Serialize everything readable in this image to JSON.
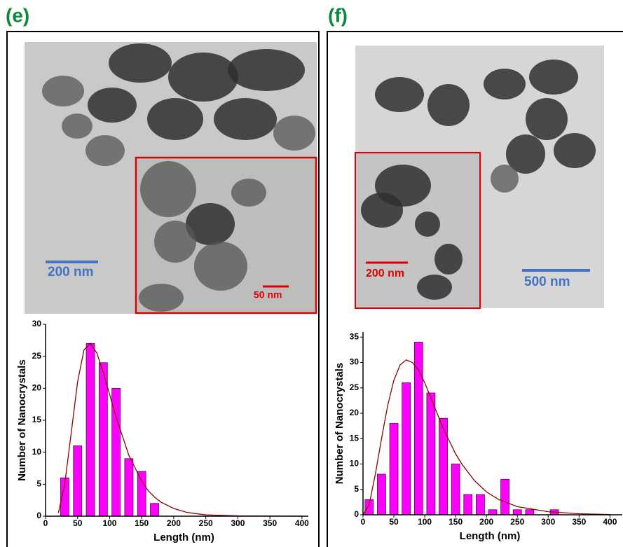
{
  "figure": {
    "panels": [
      {
        "label": "(e)",
        "scale_bar": "200 nm",
        "inset_scale_bar": "50 nm"
      },
      {
        "label": "(f)",
        "inset_scale_bar": "200 nm",
        "scale_bar": "500 nm"
      }
    ]
  },
  "chart_data": [
    {
      "type": "bar",
      "x_label": "Length (nm)",
      "y_label": "Number of Nanocrystals",
      "x": [
        30,
        50,
        70,
        90,
        110,
        130,
        150,
        170
      ],
      "values": [
        6,
        11,
        27,
        24,
        20,
        9,
        7,
        2
      ],
      "color": "#ff00ff",
      "fit": {
        "color": "#8b0000",
        "x": [
          20,
          30,
          40,
          50,
          60,
          70,
          80,
          90,
          100,
          110,
          120,
          130,
          140,
          150,
          160,
          170,
          180,
          200,
          220,
          250,
          300,
          400
        ],
        "y": [
          0.5,
          5,
          13,
          21,
          26,
          27,
          25.5,
          22.5,
          19,
          15.5,
          12.5,
          9.5,
          7.5,
          5.5,
          4,
          3,
          2.2,
          1.2,
          0.6,
          0.2,
          0.05,
          0
        ]
      },
      "xlim": [
        0,
        410
      ],
      "ylim": [
        0,
        30
      ],
      "xticks": [
        0,
        50,
        100,
        150,
        200,
        250,
        300,
        350,
        400
      ],
      "yticks": [
        0,
        5,
        10,
        15,
        20,
        25,
        30
      ]
    },
    {
      "type": "bar",
      "x_label": "Length (nm)",
      "y_label": "Number of Nanocrystals",
      "x": [
        10,
        30,
        50,
        70,
        90,
        110,
        130,
        150,
        170,
        190,
        210,
        230,
        250,
        270,
        310
      ],
      "values": [
        3,
        8,
        18,
        26,
        34,
        24,
        19,
        10,
        4,
        4,
        1,
        7,
        1,
        1,
        1
      ],
      "color": "#ff00ff",
      "fit": {
        "color": "#8b0000",
        "x": [
          0,
          10,
          20,
          30,
          40,
          50,
          60,
          70,
          80,
          90,
          100,
          110,
          120,
          130,
          140,
          150,
          160,
          180,
          200,
          220,
          250,
          300,
          350,
          400
        ],
        "y": [
          0,
          2,
          8,
          15,
          21.5,
          26.5,
          29.5,
          30.5,
          30,
          28.5,
          26,
          23,
          20,
          17,
          14.5,
          12,
          10,
          6.8,
          4.5,
          3,
          1.6,
          0.6,
          0.2,
          0.05
        ]
      },
      "xlim": [
        0,
        420
      ],
      "ylim": [
        0,
        36
      ],
      "xticks": [
        0,
        50,
        100,
        150,
        200,
        250,
        300,
        350,
        400
      ],
      "yticks": [
        0,
        5,
        10,
        15,
        20,
        25,
        30,
        35
      ]
    }
  ]
}
